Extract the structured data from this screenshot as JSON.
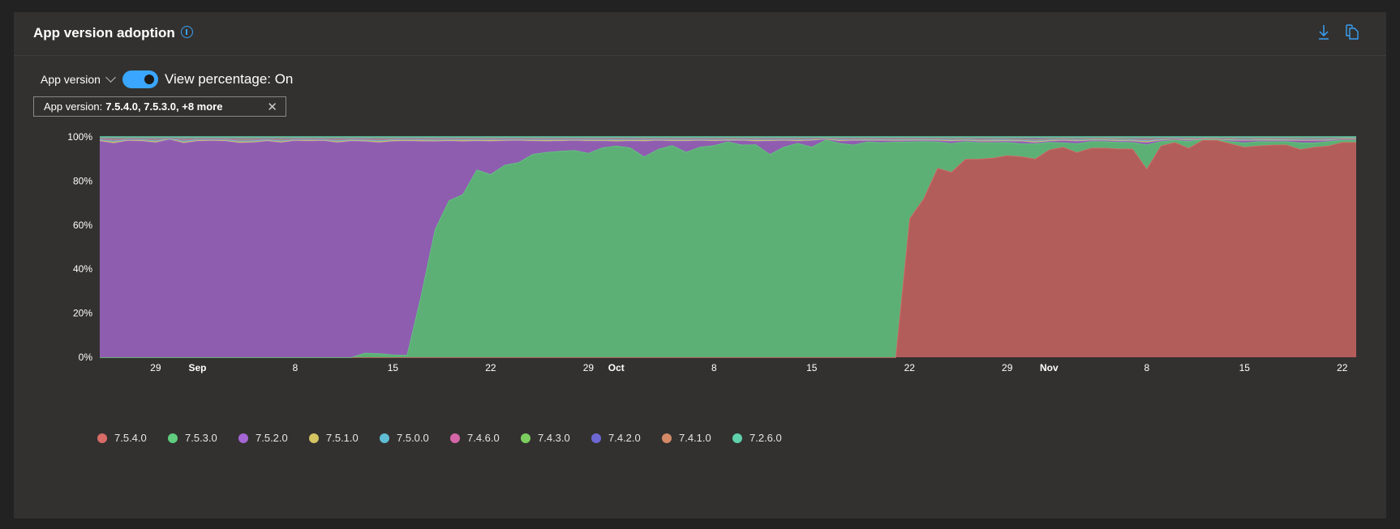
{
  "header": {
    "title": "App version adoption",
    "info_icon": "info-icon",
    "download_icon": "download-icon",
    "copy_icon": "copy-icon",
    "accent": "#3aa0f3"
  },
  "toolbar": {
    "dropdown_label": "App version",
    "toggle_label": "View percentage: On",
    "toggle_on": true
  },
  "filter_pill": {
    "label": "App version:",
    "value": "7.5.4.0, 7.5.3.0, +8 more"
  },
  "chart_data": {
    "type": "area",
    "stacked": true,
    "normalized_percent": true,
    "start_date": "Aug 25",
    "days": 91,
    "ylim": [
      0,
      100
    ],
    "y_ticks": [
      "0%",
      "20%",
      "40%",
      "60%",
      "80%",
      "100%"
    ],
    "x_ticks": [
      {
        "label": "29",
        "day": 4,
        "bold": false
      },
      {
        "label": "Sep",
        "day": 7,
        "bold": true
      },
      {
        "label": "8",
        "day": 14,
        "bold": false
      },
      {
        "label": "15",
        "day": 21,
        "bold": false
      },
      {
        "label": "22",
        "day": 28,
        "bold": false
      },
      {
        "label": "29",
        "day": 35,
        "bold": false
      },
      {
        "label": "Oct",
        "day": 37,
        "bold": true
      },
      {
        "label": "8",
        "day": 44,
        "bold": false
      },
      {
        "label": "15",
        "day": 51,
        "bold": false
      },
      {
        "label": "22",
        "day": 58,
        "bold": false
      },
      {
        "label": "29",
        "day": 65,
        "bold": false
      },
      {
        "label": "Nov",
        "day": 68,
        "bold": true
      },
      {
        "label": "8",
        "day": 75,
        "bold": false
      },
      {
        "label": "15",
        "day": 82,
        "bold": false
      },
      {
        "label": "22",
        "day": 89,
        "bold": false
      }
    ],
    "legend_position": "bottom-left",
    "series": [
      {
        "name": "7.5.4.0",
        "color": "#d96b67",
        "fill": "#b35d5b",
        "values": [
          0,
          0,
          0,
          0,
          0,
          0,
          0,
          0,
          0,
          0,
          0,
          0,
          0,
          0,
          0,
          0,
          0,
          0,
          0,
          0,
          0,
          0,
          0,
          0,
          0,
          0,
          0,
          0,
          0,
          0,
          0,
          0,
          0,
          0,
          0,
          0,
          0,
          0,
          0,
          0,
          0,
          0,
          0,
          0,
          0,
          0,
          0,
          0,
          0,
          0,
          0,
          0,
          0,
          0,
          0,
          0,
          0,
          0,
          63,
          72,
          86,
          84,
          90,
          90.5,
          91,
          92,
          93,
          92,
          96,
          94,
          92,
          96,
          96,
          96,
          95,
          86,
          96,
          98,
          96,
          99.5,
          99.5,
          98,
          96,
          97,
          97.5,
          97,
          95.5,
          96,
          96,
          98,
          98
        ]
      },
      {
        "name": "7.5.3.0",
        "color": "#5fcc7e",
        "fill": "#5db075",
        "values": [
          0,
          0,
          0,
          0,
          0,
          0,
          0,
          0,
          0,
          0,
          0,
          0,
          0,
          0,
          0,
          0,
          0,
          0,
          0,
          2,
          1.8,
          1.2,
          1,
          28,
          58,
          71,
          74,
          85,
          83,
          87,
          88,
          92,
          93,
          93.5,
          93.5,
          92.5,
          95,
          96,
          95,
          91,
          94,
          96,
          93,
          95,
          96,
          98,
          96,
          96.5,
          92,
          95,
          97,
          95,
          99,
          97,
          96,
          98,
          97,
          97.5,
          35,
          26,
          12,
          13,
          8,
          7.5,
          7,
          6,
          6,
          7,
          3.5,
          2,
          4,
          3,
          3,
          3,
          3,
          11,
          2,
          1,
          3,
          0.3,
          0.3,
          1,
          2,
          2,
          1.5,
          1.5,
          3,
          2,
          2,
          1,
          1
        ]
      },
      {
        "name": "7.5.2.0",
        "color": "#a466d4",
        "fill": "#8f5db0",
        "values": [
          98,
          97,
          98,
          98,
          97,
          99,
          97,
          98,
          98,
          98,
          97,
          97,
          98,
          97,
          98,
          98,
          98,
          97,
          98,
          96,
          96,
          96.5,
          97,
          70,
          40,
          27,
          24,
          13,
          15,
          11,
          10,
          6,
          5,
          4.5,
          4.5,
          5.5,
          3,
          2,
          3,
          7,
          4,
          2,
          5,
          3,
          2,
          0.5,
          2,
          1.5,
          6,
          3,
          1,
          3,
          0.3,
          1,
          2,
          0.5,
          1,
          0.5,
          0.5,
          0.5,
          0.5,
          1,
          0.5,
          0.5,
          0.5,
          0.5,
          1,
          0.5,
          0.5,
          1,
          1,
          0.5,
          0.5,
          0.5,
          0.5,
          1,
          0.5,
          0.5,
          0.5,
          0.2,
          0.2,
          0.5,
          1,
          0.5,
          0.5,
          0.5,
          1,
          1,
          0.5,
          0.5,
          0.5
        ]
      },
      {
        "name": "7.5.1.0",
        "color": "#d4c462",
        "fill": "#c4b45a",
        "values": [
          0.3,
          0.6,
          0.2,
          0.3,
          0.5,
          0.1,
          0.5,
          0.3,
          0.2,
          0.3,
          0.5,
          0.4,
          0.3,
          0.5,
          0.2,
          0.3,
          0.2,
          0.5,
          0.3,
          0.4,
          0.5,
          0.4,
          0.3,
          0.4,
          0.4,
          0.3,
          0.5,
          0.3,
          0.4,
          0.3,
          0.2,
          0.3,
          0.4,
          0.3,
          0.2,
          0.3,
          0.3,
          0.5,
          0.3,
          0.4,
          0.2,
          0.3,
          0.3,
          0.2,
          0.3,
          0.3,
          0.2,
          0.4,
          0.3,
          0.2,
          0.3,
          0.2,
          0.1,
          0.3,
          0.2,
          0.3,
          0.2,
          0.3,
          0.3,
          0.2,
          0.3,
          0.3,
          0.2,
          0.3,
          0.4,
          0.3,
          0.3,
          0.5,
          0.3,
          0.2,
          0.3,
          0.2,
          0.2,
          0.3,
          0.3,
          0.5,
          0.2,
          0.1,
          0.2,
          0.1,
          0.1,
          0.2,
          0.2,
          0.2,
          0.3,
          0.2,
          0.2,
          0.2,
          0.2,
          0.1,
          0.1
        ]
      },
      {
        "name": "7.5.0.0",
        "color": "#5fbcd3",
        "fill": "#58a9bd",
        "values": [
          0.3,
          0.5,
          0.2,
          0.3,
          0.4,
          0.1,
          0.5,
          0.3,
          0.2,
          0.3,
          0.4,
          0.4,
          0.3,
          0.4,
          0.2,
          0.3,
          0.2,
          0.4,
          0.3,
          0.3,
          0.4,
          0.3,
          0.3,
          0.3,
          0.3,
          0.3,
          0.3,
          0.3,
          0.3,
          0.2,
          0.2,
          0.3,
          0.3,
          0.3,
          0.2,
          0.3,
          0.3,
          0.3,
          0.3,
          0.3,
          0.2,
          0.3,
          0.3,
          0.2,
          0.3,
          0.2,
          0.2,
          0.3,
          0.3,
          0.2,
          0.3,
          0.2,
          0.1,
          0.3,
          0.2,
          0.2,
          0.2,
          0.3,
          0.2,
          0.2,
          0.2,
          0.3,
          0.2,
          0.3,
          0.3,
          0.3,
          0.3,
          0.4,
          0.3,
          0.2,
          0.3,
          0.2,
          0.2,
          0.3,
          0.3,
          0.4,
          0.2,
          0.1,
          0.2,
          0.1,
          0.1,
          0.2,
          0.2,
          0.2,
          0.2,
          0.2,
          0.2,
          0.2,
          0.2,
          0.1,
          0.1
        ]
      },
      {
        "name": "7.4.6.0",
        "color": "#d466a8",
        "fill": "#c05e98",
        "values": [
          0.3,
          0.5,
          0.3,
          0.3,
          0.4,
          0.2,
          0.5,
          0.3,
          0.3,
          0.3,
          0.5,
          0.4,
          0.3,
          0.4,
          0.3,
          0.3,
          0.3,
          0.4,
          0.3,
          0.4,
          0.4,
          0.3,
          0.3,
          0.3,
          0.4,
          0.3,
          0.3,
          0.3,
          0.3,
          0.3,
          0.2,
          0.3,
          0.3,
          0.3,
          0.2,
          0.3,
          0.3,
          0.3,
          0.3,
          0.3,
          0.2,
          0.3,
          0.3,
          0.2,
          0.3,
          0.2,
          0.2,
          0.3,
          0.3,
          0.2,
          0.3,
          0.2,
          0.1,
          0.3,
          0.2,
          0.2,
          0.2,
          0.2,
          0.2,
          0.2,
          0.2,
          0.3,
          0.2,
          0.3,
          0.3,
          0.3,
          0.3,
          0.4,
          0.3,
          0.2,
          0.3,
          0.2,
          0.2,
          0.3,
          0.3,
          0.4,
          0.2,
          0.1,
          0.2,
          0.1,
          0.1,
          0.2,
          0.2,
          0.2,
          0.2,
          0.2,
          0.2,
          0.2,
          0.2,
          0.1,
          0.1
        ]
      },
      {
        "name": "7.4.3.0",
        "color": "#7ccf5f",
        "fill": "#6fb858",
        "values": [
          0.2,
          0.3,
          0.2,
          0.2,
          0.3,
          0.1,
          0.3,
          0.2,
          0.2,
          0.2,
          0.3,
          0.3,
          0.2,
          0.3,
          0.2,
          0.2,
          0.2,
          0.3,
          0.2,
          0.2,
          0.3,
          0.2,
          0.2,
          0.2,
          0.2,
          0.2,
          0.2,
          0.2,
          0.2,
          0.2,
          0.2,
          0.2,
          0.2,
          0.2,
          0.2,
          0.2,
          0.2,
          0.2,
          0.2,
          0.2,
          0.2,
          0.2,
          0.2,
          0.2,
          0.2,
          0.2,
          0.2,
          0.2,
          0.2,
          0.2,
          0.2,
          0.2,
          0.1,
          0.2,
          0.2,
          0.2,
          0.2,
          0.2,
          0.2,
          0.2,
          0.2,
          0.2,
          0.2,
          0.2,
          0.2,
          0.2,
          0.2,
          0.3,
          0.2,
          0.2,
          0.2,
          0.2,
          0.2,
          0.2,
          0.2,
          0.3,
          0.2,
          0.1,
          0.2,
          0.1,
          0.1,
          0.2,
          0.2,
          0.2,
          0.2,
          0.2,
          0.2,
          0.2,
          0.2,
          0.1,
          0.1
        ]
      },
      {
        "name": "7.4.2.0",
        "color": "#6e68d4",
        "fill": "#6460bf",
        "values": [
          0.2,
          0.3,
          0.2,
          0.2,
          0.3,
          0.1,
          0.3,
          0.2,
          0.2,
          0.2,
          0.3,
          0.3,
          0.2,
          0.3,
          0.2,
          0.2,
          0.2,
          0.3,
          0.2,
          0.2,
          0.3,
          0.2,
          0.2,
          0.2,
          0.2,
          0.2,
          0.2,
          0.2,
          0.2,
          0.2,
          0.2,
          0.2,
          0.2,
          0.2,
          0.2,
          0.2,
          0.2,
          0.2,
          0.2,
          0.2,
          0.2,
          0.2,
          0.2,
          0.2,
          0.2,
          0.2,
          0.2,
          0.2,
          0.2,
          0.2,
          0.2,
          0.2,
          0.1,
          0.2,
          0.2,
          0.2,
          0.2,
          0.2,
          0.2,
          0.2,
          0.2,
          0.3,
          0.2,
          0.4,
          0.3,
          0.3,
          0.4,
          0.4,
          0.3,
          0.2,
          0.3,
          0.2,
          0.2,
          0.3,
          0.3,
          0.3,
          0.2,
          0.1,
          0.2,
          0.1,
          0.1,
          0.2,
          0.3,
          0.2,
          0.2,
          0.2,
          0.3,
          0.3,
          0.2,
          0.1,
          0.1
        ]
      },
      {
        "name": "7.4.1.0",
        "color": "#d48a66",
        "fill": "#bd7c5d",
        "values": [
          0.2,
          0.3,
          0.2,
          0.2,
          0.3,
          0.1,
          0.3,
          0.2,
          0.2,
          0.2,
          0.3,
          0.3,
          0.2,
          0.3,
          0.2,
          0.2,
          0.2,
          0.3,
          0.2,
          0.2,
          0.3,
          0.2,
          0.2,
          0.2,
          0.2,
          0.2,
          0.2,
          0.2,
          0.2,
          0.2,
          0.2,
          0.2,
          0.2,
          0.2,
          0.2,
          0.2,
          0.2,
          0.2,
          0.2,
          0.2,
          0.2,
          0.2,
          0.2,
          0.2,
          0.2,
          0.2,
          0.2,
          0.2,
          0.2,
          0.2,
          0.2,
          0.2,
          0.1,
          0.2,
          0.2,
          0.2,
          0.2,
          0.2,
          0.2,
          0.2,
          0.2,
          0.2,
          0.2,
          0.2,
          0.2,
          0.2,
          0.2,
          0.3,
          0.2,
          0.2,
          0.2,
          0.2,
          0.2,
          0.2,
          0.2,
          0.3,
          0.2,
          0.1,
          0.2,
          0.1,
          0.1,
          0.2,
          0.2,
          0.2,
          0.2,
          0.2,
          0.2,
          0.2,
          0.2,
          0.1,
          0.1
        ]
      },
      {
        "name": "7.2.6.0",
        "color": "#5fd1ac",
        "fill": "#58b898",
        "values": [
          0.3,
          0.3,
          0.3,
          0.3,
          0.3,
          0.3,
          0.3,
          0.3,
          0.3,
          0.3,
          0.3,
          0.3,
          0.3,
          0.3,
          0.3,
          0.3,
          0.3,
          0.3,
          0.3,
          0.3,
          0.3,
          0.3,
          0.3,
          0.3,
          0.3,
          0.3,
          0.3,
          0.3,
          0.3,
          0.3,
          0.3,
          0.3,
          0.3,
          0.3,
          0.3,
          0.3,
          0.3,
          0.3,
          0.3,
          0.3,
          0.3,
          0.3,
          0.3,
          0.3,
          0.3,
          0.3,
          0.3,
          0.3,
          0.3,
          0.3,
          0.3,
          0.3,
          0.3,
          0.3,
          0.3,
          0.3,
          0.3,
          0.3,
          0.3,
          0.3,
          0.3,
          0.3,
          0.3,
          0.3,
          0.3,
          0.3,
          0.3,
          0.3,
          0.3,
          0.3,
          0.3,
          0.3,
          0.3,
          0.3,
          0.3,
          0.3,
          0.3,
          0.3,
          0.3,
          0.3,
          0.3,
          0.3,
          0.3,
          0.3,
          0.3,
          0.3,
          0.3,
          0.3,
          0.3,
          0.3,
          0.3
        ]
      }
    ]
  }
}
